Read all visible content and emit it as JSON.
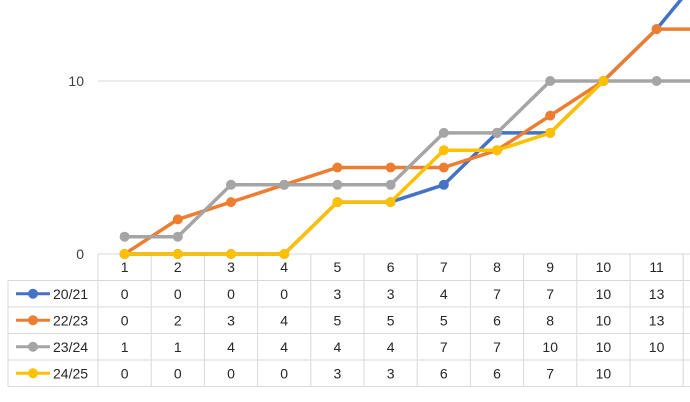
{
  "chart_data": {
    "type": "line",
    "title": "",
    "xlabel": "",
    "ylabel": "",
    "ylim": [
      0,
      14.5
    ],
    "yticks": [
      0,
      10
    ],
    "categories": [
      "1",
      "2",
      "3",
      "4",
      "5",
      "6",
      "7",
      "8",
      "9",
      "10",
      "11"
    ],
    "grid": true,
    "legend": "data-table-rows",
    "series": [
      {
        "name": "20/21",
        "color": "#4472C4",
        "values": [
          0,
          0,
          0,
          0,
          3,
          3,
          4,
          7,
          7,
          10,
          13
        ],
        "labels": [
          "0",
          "0",
          "0",
          "0",
          "3",
          "3",
          "4",
          "7",
          "7",
          "10",
          "13"
        ]
      },
      {
        "name": "22/23",
        "color": "#ED7D31",
        "values": [
          0,
          2,
          3,
          4,
          5,
          5,
          5,
          6,
          8,
          10,
          13
        ],
        "labels": [
          "0",
          "2",
          "3",
          "4",
          "5",
          "5",
          "5",
          "6",
          "8",
          "10",
          "13"
        ]
      },
      {
        "name": "23/24",
        "color": "#A5A5A5",
        "values": [
          1,
          1,
          4,
          4,
          4,
          4,
          7,
          7,
          10,
          10,
          10
        ],
        "labels": [
          "1",
          "1",
          "4",
          "4",
          "4",
          "4",
          "7",
          "7",
          "10",
          "10",
          "10"
        ]
      },
      {
        "name": "24/25",
        "color": "#FFC000",
        "values": [
          0,
          0,
          0,
          0,
          3,
          3,
          6,
          6,
          7,
          10,
          null
        ],
        "labels": [
          "0",
          "0",
          "0",
          "0",
          "3",
          "3",
          "6",
          "6",
          "7",
          "10",
          ""
        ]
      }
    ]
  }
}
